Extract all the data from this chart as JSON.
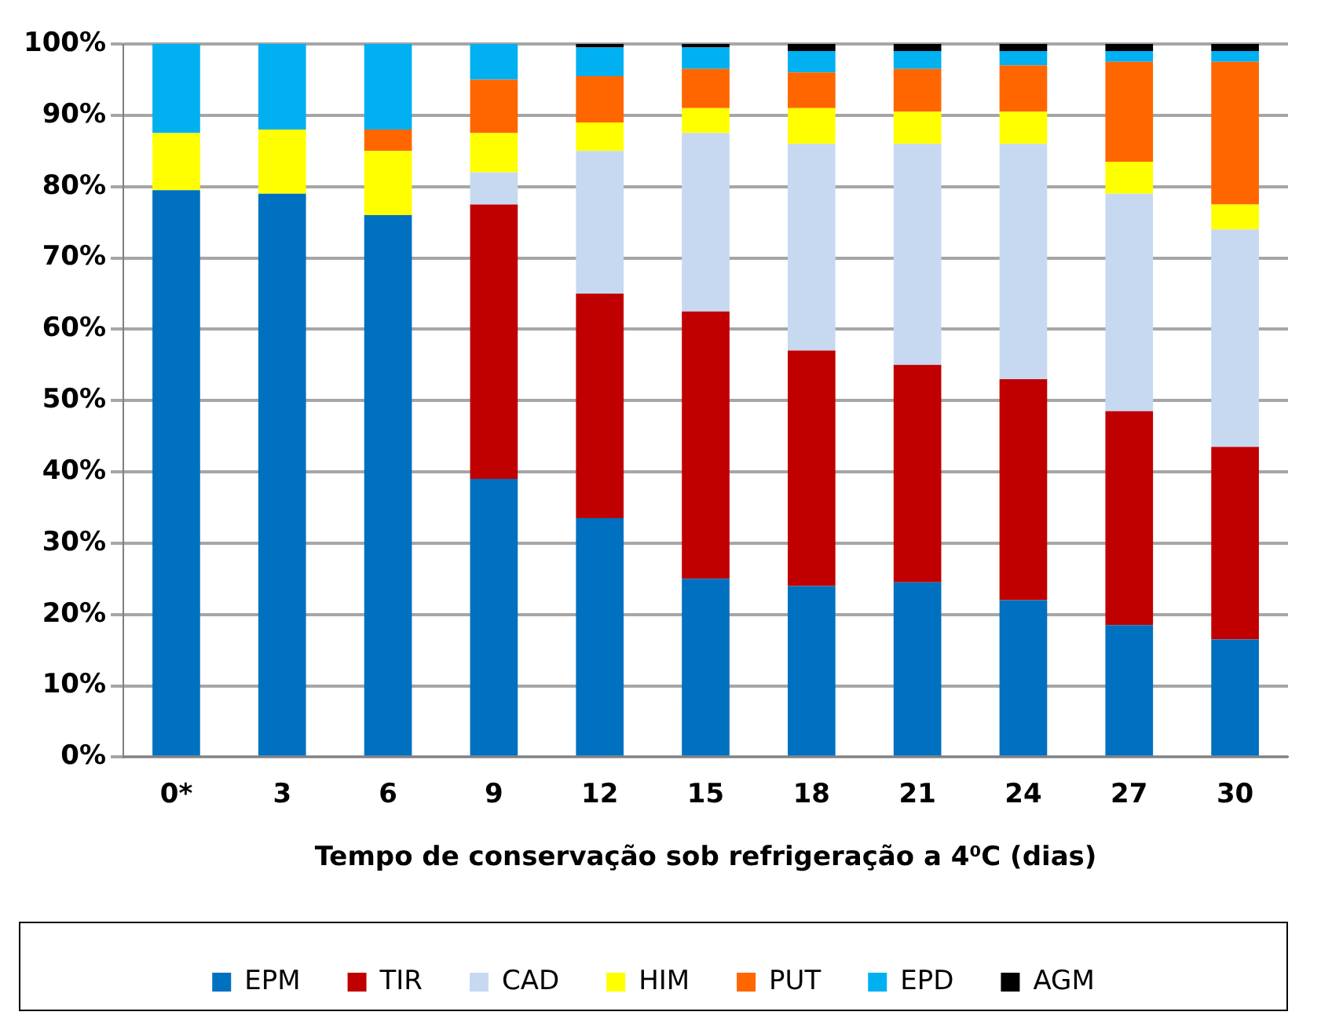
{
  "chart_data": {
    "type": "bar",
    "stacked": true,
    "xlabel": "Tempo de conservação sob refrigeração a 4⁰C (dias)",
    "categories": [
      "0*",
      "3",
      "6",
      "9",
      "12",
      "15",
      "18",
      "21",
      "24",
      "27",
      "30"
    ],
    "series": [
      {
        "name": "EPM",
        "color": "#0070c0",
        "values": [
          79.5,
          79,
          76,
          39,
          33.5,
          25,
          24,
          24.5,
          22,
          18.5,
          16.5
        ]
      },
      {
        "name": "TIR",
        "color": "#c00000",
        "values": [
          0,
          0,
          0,
          38.5,
          31.5,
          37.5,
          33,
          30.5,
          31,
          30,
          27
        ]
      },
      {
        "name": "CAD",
        "color": "#c6d9f1",
        "values": [
          0,
          0,
          0,
          4.5,
          20,
          25,
          29,
          31,
          33,
          30.5,
          30.5
        ]
      },
      {
        "name": "HIM",
        "color": "#ffff00",
        "values": [
          8,
          9,
          9,
          5.5,
          4,
          3.5,
          5,
          4.5,
          4.5,
          4.5,
          3.5
        ]
      },
      {
        "name": "PUT",
        "color": "#ff6600",
        "values": [
          0,
          0,
          3,
          7.5,
          6.5,
          5.5,
          5,
          6,
          6.5,
          14,
          20
        ]
      },
      {
        "name": "EPD",
        "color": "#00b0f0",
        "values": [
          12.5,
          12,
          12,
          5,
          4,
          3,
          3,
          2.5,
          2,
          1.5,
          1.5
        ]
      },
      {
        "name": "AGM",
        "color": "#000000",
        "values": [
          0,
          0,
          0,
          0,
          0.5,
          0.5,
          1,
          1,
          1,
          1,
          1
        ]
      }
    ],
    "ylim": [
      0,
      100
    ],
    "yticks": [
      {
        "value": 0,
        "label": "0%"
      },
      {
        "value": 10,
        "label": "10%"
      },
      {
        "value": 20,
        "label": "20%"
      },
      {
        "value": 30,
        "label": "30%"
      },
      {
        "value": 40,
        "label": "40%"
      },
      {
        "value": 50,
        "label": "50%"
      },
      {
        "value": 60,
        "label": "60%"
      },
      {
        "value": 70,
        "label": "70%"
      },
      {
        "value": 80,
        "label": "80%"
      },
      {
        "value": 90,
        "label": "90%"
      },
      {
        "value": 100,
        "label": "100%"
      }
    ],
    "grid": "y",
    "legend": "bottom"
  }
}
